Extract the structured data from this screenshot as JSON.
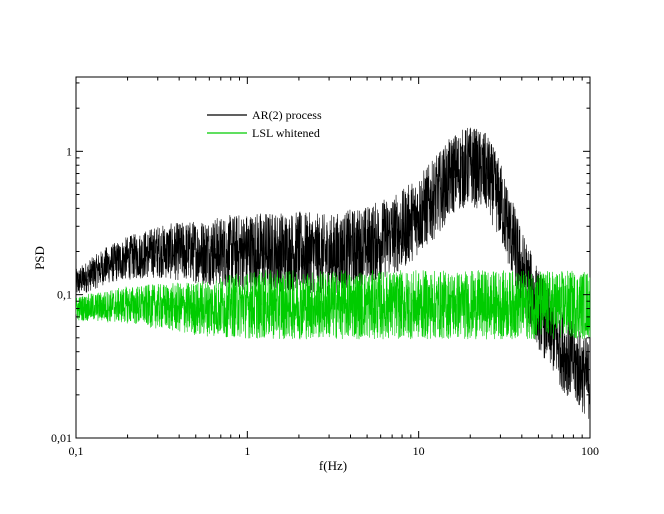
{
  "chart_data": {
    "type": "line",
    "title": "",
    "xlabel": "f(Hz)",
    "ylabel": "PSD",
    "x_scale": "log",
    "y_scale": "log",
    "xlim": [
      0.1,
      100
    ],
    "ylim": [
      0.01,
      3.3
    ],
    "grid": false,
    "legend_position": "top-left",
    "x_ticks": [
      {
        "value": 0.1,
        "label": "0,1"
      },
      {
        "value": 1,
        "label": "1"
      },
      {
        "value": 10,
        "label": "10"
      },
      {
        "value": 100,
        "label": "100"
      }
    ],
    "y_ticks": [
      {
        "value": 0.01,
        "label": "0,01"
      },
      {
        "value": 0.1,
        "label": "0,1"
      },
      {
        "value": 1,
        "label": "1"
      }
    ],
    "series": [
      {
        "name": "AR(2) process",
        "color": "#000000",
        "points": [
          [
            0.1,
            0.12
          ],
          [
            0.15,
            0.16
          ],
          [
            0.2,
            0.18
          ],
          [
            0.3,
            0.2
          ],
          [
            0.5,
            0.2
          ],
          [
            1,
            0.2
          ],
          [
            2,
            0.2
          ],
          [
            3,
            0.19
          ],
          [
            5,
            0.22
          ],
          [
            8,
            0.28
          ],
          [
            12,
            0.45
          ],
          [
            16,
            0.7
          ],
          [
            20,
            0.8
          ],
          [
            25,
            0.7
          ],
          [
            30,
            0.45
          ],
          [
            35,
            0.25
          ],
          [
            40,
            0.15
          ],
          [
            50,
            0.08
          ],
          [
            70,
            0.04
          ],
          [
            100,
            0.025
          ]
        ]
      },
      {
        "name": "LSL whitened",
        "color": "#00cc00",
        "points": [
          [
            0.1,
            0.08
          ],
          [
            0.2,
            0.085
          ],
          [
            0.5,
            0.08
          ],
          [
            1,
            0.085
          ],
          [
            2,
            0.085
          ],
          [
            5,
            0.085
          ],
          [
            10,
            0.085
          ],
          [
            20,
            0.085
          ],
          [
            50,
            0.085
          ],
          [
            100,
            0.085
          ]
        ]
      }
    ]
  }
}
